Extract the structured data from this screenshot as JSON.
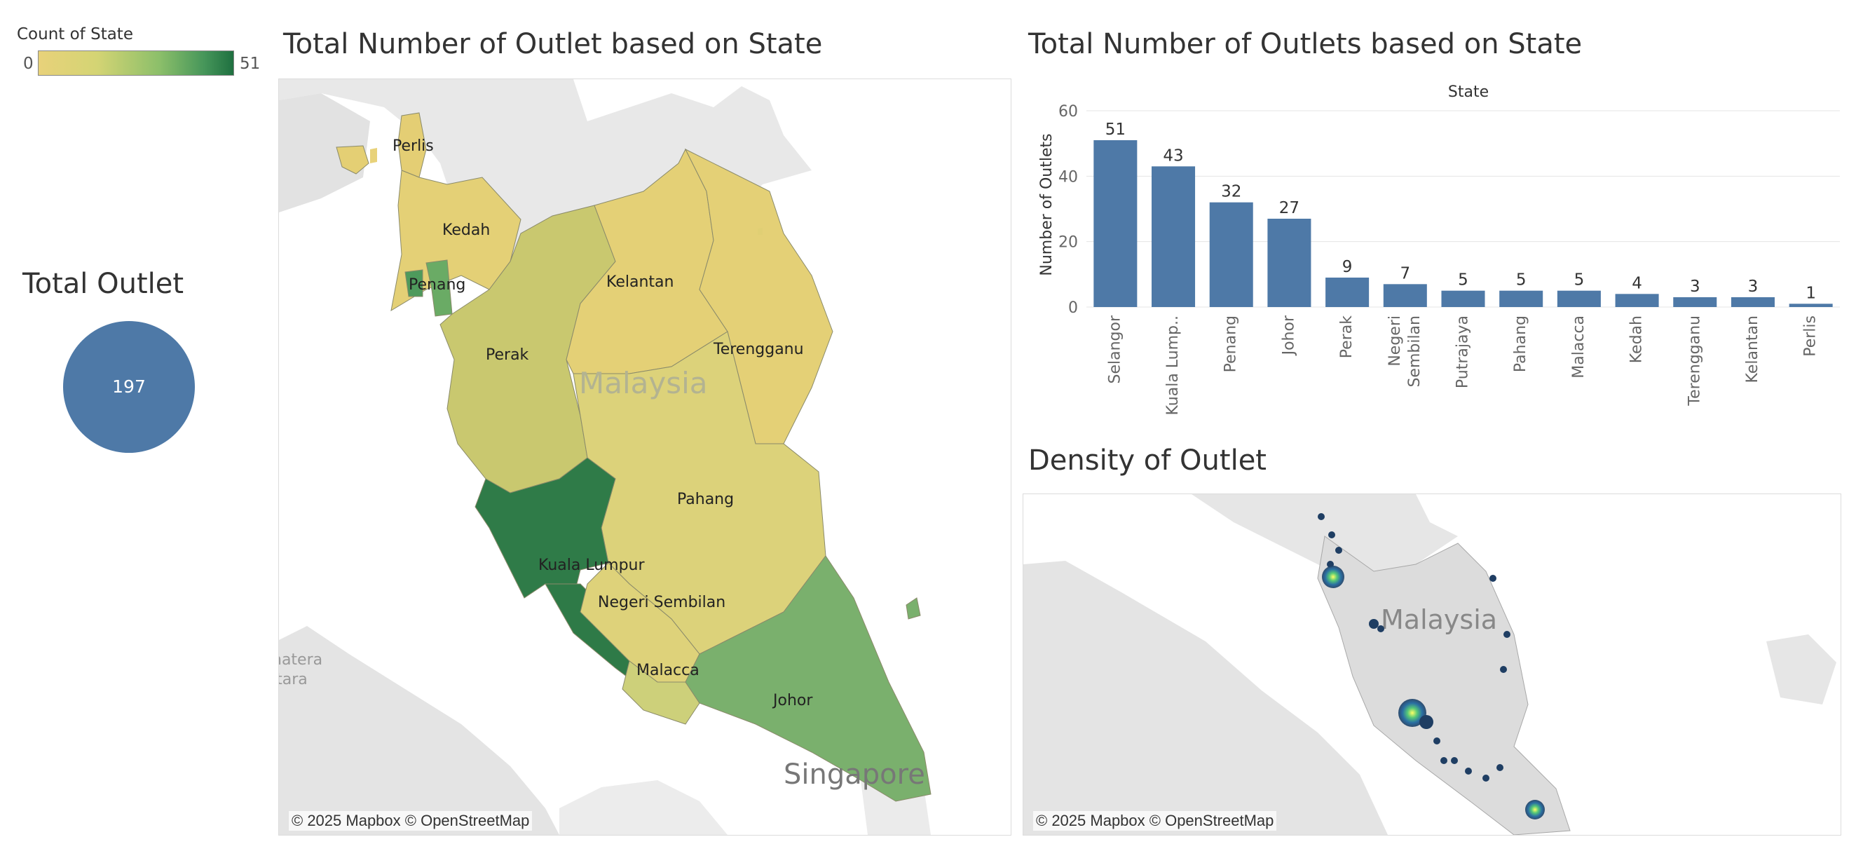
{
  "legend": {
    "title": "Count of State",
    "min_label": "0",
    "max_label": "51",
    "colors": [
      "#e8d27a",
      "#d4d474",
      "#8cbf6a",
      "#46965a",
      "#1f7040"
    ]
  },
  "total": {
    "title": "Total Outlet",
    "value": "197",
    "color": "#4e79a7"
  },
  "map_state": {
    "title": "Total Number of Outlet based on State",
    "attribution": "© 2025 Mapbox © OpenStreetMap",
    "country_label": "Malaysia",
    "singapore_label": "Singapore",
    "sumatera_label_1": "natera",
    "sumatera_label_2": "itara",
    "faint_label": "Pahang",
    "states": {
      "perlis": "Perlis",
      "kedah": "Kedah",
      "penang": "Penang",
      "perak": "Perak",
      "kelantan": "Kelantan",
      "terengganu": "Terengganu",
      "pahang": "Pahang",
      "kuala_lumpur": "Kuala Lumpur",
      "negeri_sembilan": "Negeri Sembilan",
      "malacca": "Malacca",
      "johor": "Johor"
    }
  },
  "bar_panel": {
    "title": "Total Number of Outlets based on State"
  },
  "density": {
    "title": "Density of Outlet",
    "attribution": "© 2025 Mapbox © OpenStreetMap",
    "country_label": "Malaysia"
  },
  "chart_data": {
    "type": "bar",
    "title": "Total Number of Outlets based on State",
    "xlabel_top": "State",
    "ylabel": "Number of Outlets",
    "ylim": [
      0,
      60
    ],
    "yticks": [
      0,
      20,
      40,
      60
    ],
    "grid": true,
    "color": "#4e79a7",
    "categories": [
      "Selangor",
      "Kuala Lump..",
      "Penang",
      "Johor",
      "Perak",
      "Negeri Sembilan",
      "Putrajaya",
      "Pahang",
      "Malacca",
      "Kedah",
      "Terengganu",
      "Kelantan",
      "Perlis"
    ],
    "category_lines": [
      [
        "Selangor"
      ],
      [
        "Kuala Lump.."
      ],
      [
        "Penang"
      ],
      [
        "Johor"
      ],
      [
        "Perak"
      ],
      [
        "Negeri",
        "Sembilan"
      ],
      [
        "Putrajaya"
      ],
      [
        "Pahang"
      ],
      [
        "Malacca"
      ],
      [
        "Kedah"
      ],
      [
        "Terengganu"
      ],
      [
        "Kelantan"
      ],
      [
        "Perlis"
      ]
    ],
    "values": [
      51,
      43,
      32,
      27,
      9,
      7,
      5,
      5,
      5,
      4,
      3,
      3,
      1
    ]
  }
}
